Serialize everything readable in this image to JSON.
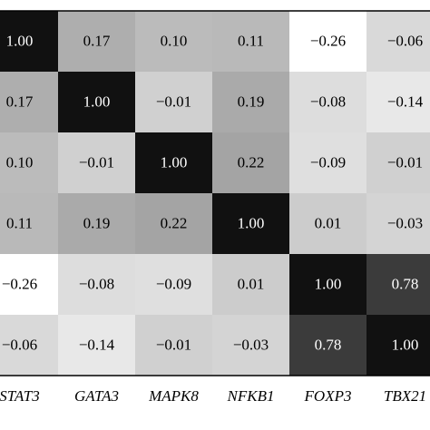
{
  "chart_data": {
    "type": "heatmap",
    "categories": [
      "STAT3",
      "GATA3",
      "MAPK8",
      "NFKB1",
      "FOXP3",
      "TBX21"
    ],
    "values": [
      [
        1.0,
        0.17,
        0.1,
        0.11,
        -0.26,
        -0.06
      ],
      [
        0.17,
        1.0,
        -0.01,
        0.19,
        -0.08,
        -0.14
      ],
      [
        0.1,
        -0.01,
        1.0,
        0.22,
        -0.09,
        -0.01
      ],
      [
        0.11,
        0.19,
        0.22,
        1.0,
        0.01,
        -0.03
      ],
      [
        -0.26,
        -0.08,
        -0.09,
        0.01,
        1.0,
        0.78
      ],
      [
        -0.06,
        -0.14,
        -0.01,
        -0.03,
        0.78,
        1.0
      ]
    ],
    "value_labels": [
      [
        "1.00",
        "0.17",
        "0.10",
        "0.11",
        "−0.26",
        "−0.06"
      ],
      [
        "0.17",
        "1.00",
        "−0.01",
        "0.19",
        "−0.08",
        "−0.14"
      ],
      [
        "0.10",
        "−0.01",
        "1.00",
        "0.22",
        "−0.09",
        "−0.01"
      ],
      [
        "0.11",
        "0.19",
        "0.22",
        "1.00",
        "0.01",
        "−0.03"
      ],
      [
        "−0.26",
        "−0.08",
        "−0.09",
        "0.01",
        "1.00",
        "0.78"
      ],
      [
        "−0.06",
        "−0.14",
        "−0.01",
        "−0.03",
        "0.78",
        "1.00"
      ]
    ],
    "zlim": [
      -0.26,
      1.0
    ],
    "colormap": [
      "#ffffff",
      "#111111"
    ]
  }
}
